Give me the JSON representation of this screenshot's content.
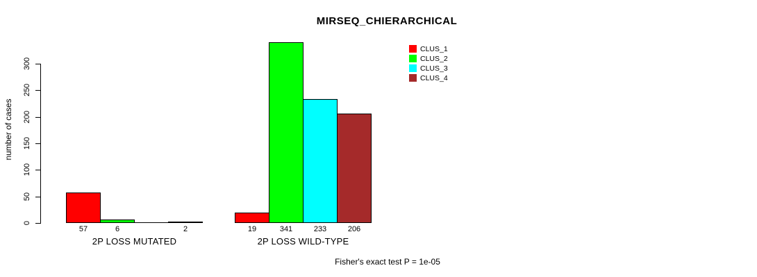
{
  "chart_data": {
    "type": "bar",
    "title": "MIRSEQ_CHIERARCHICAL",
    "ylabel": "number of cases",
    "annotation": "Fisher's exact test P = 1e-05",
    "ylim": [
      0,
      341
    ],
    "yticks": [
      0,
      50,
      100,
      150,
      200,
      250,
      300
    ],
    "grid": false,
    "legend_position": "top-right",
    "legend": [
      {
        "label": "CLUS_1",
        "color": "#FF0000"
      },
      {
        "label": "CLUS_2",
        "color": "#00FF00"
      },
      {
        "label": "CLUS_3",
        "color": "#00FFFF"
      },
      {
        "label": "CLUS_4",
        "color": "#A52A2A"
      }
    ],
    "categories": [
      "2P LOSS MUTATED",
      "2P LOSS WILD-TYPE"
    ],
    "groups": [
      {
        "label": "2P LOSS MUTATED",
        "bars": [
          {
            "series": "CLUS_1",
            "value": 57,
            "value_label": "57",
            "color": "#FF0000"
          },
          {
            "series": "CLUS_2",
            "value": 6,
            "value_label": "6",
            "color": "#00FF00"
          },
          {
            "series": "CLUS_3",
            "value": 0,
            "value_label": "",
            "color": "#00FFFF"
          },
          {
            "series": "CLUS_4",
            "value": 2,
            "value_label": "2",
            "color": "#A52A2A"
          }
        ]
      },
      {
        "label": "2P LOSS WILD-TYPE",
        "bars": [
          {
            "series": "CLUS_1",
            "value": 19,
            "value_label": "19",
            "color": "#FF0000"
          },
          {
            "series": "CLUS_2",
            "value": 341,
            "value_label": "341",
            "color": "#00FF00"
          },
          {
            "series": "CLUS_3",
            "value": 233,
            "value_label": "233",
            "color": "#00FFFF"
          },
          {
            "series": "CLUS_4",
            "value": 206,
            "value_label": "206",
            "color": "#A52A2A"
          }
        ]
      }
    ]
  }
}
